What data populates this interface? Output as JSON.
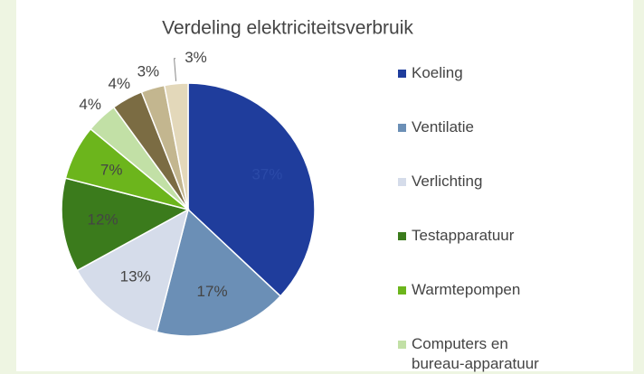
{
  "chart_data": {
    "type": "pie",
    "title": "Verdeling elektriciteitsverbruik",
    "categories": [
      "Koeling",
      "Ventilatie",
      "Verlichting",
      "Testapparatuur",
      "Warmtepompen",
      "Computers en bureau-apparatuur",
      null,
      null,
      null
    ],
    "values": [
      37,
      17,
      13,
      12,
      7,
      4,
      4,
      3,
      3
    ],
    "value_labels": [
      "37%",
      "17%",
      "13%",
      "12%",
      "7%",
      "4%",
      "4%",
      "3%",
      "3%"
    ],
    "colors": [
      "#1f3d9c",
      "#6b8fb6",
      "#d5dcea",
      "#3b7b1c",
      "#6cb51c",
      "#c2e0a6",
      "#7b6c43",
      "#c3b68f",
      "#e3d8ba"
    ],
    "legend": "right"
  }
}
